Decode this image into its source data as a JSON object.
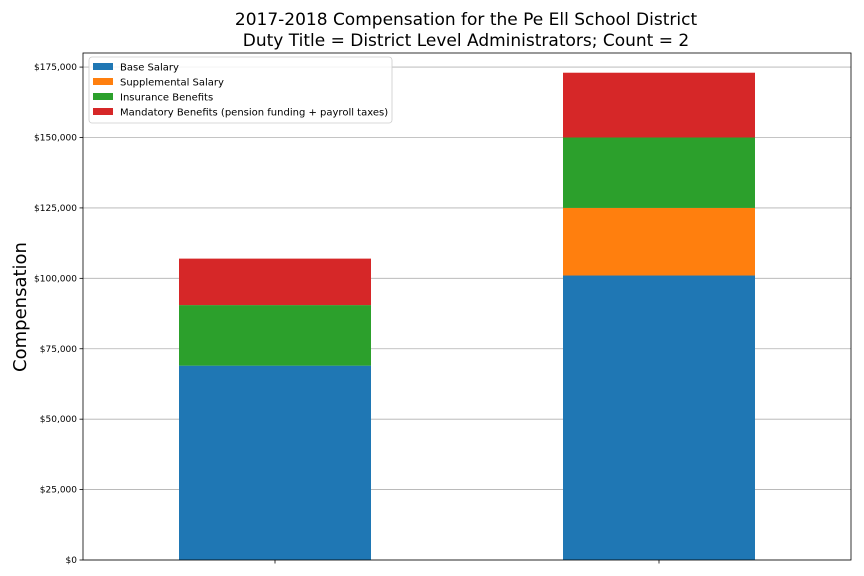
{
  "chart_data": {
    "type": "bar",
    "stacked": true,
    "title": [
      "2017-2018 Compensation for the Pe Ell School District",
      "Duty Title = District Level Administrators; Count = 2"
    ],
    "xlabel": "",
    "ylabel": "Compensation",
    "categories": [
      "",
      ""
    ],
    "ylim": [
      0,
      180000
    ],
    "yticks": [
      0,
      25000,
      50000,
      75000,
      100000,
      125000,
      150000,
      175000
    ],
    "ytick_labels": [
      "$0",
      "$25,000",
      "$50,000",
      "$75,000",
      "$100,000",
      "$125,000",
      "$150,000",
      "$175,000"
    ],
    "grid": "horizontal",
    "legend_position": "top-left",
    "series": [
      {
        "name": "Base Salary",
        "color": "#1f77b4",
        "values": [
          69000,
          101000
        ]
      },
      {
        "name": "Supplemental Salary",
        "color": "#ff7f0e",
        "values": [
          0,
          24000
        ]
      },
      {
        "name": "Insurance Benefits",
        "color": "#2ca02c",
        "values": [
          21500,
          25000
        ]
      },
      {
        "name": "Mandatory Benefits (pension funding + payroll taxes)",
        "color": "#d62728",
        "values": [
          16500,
          23000
        ]
      }
    ]
  }
}
